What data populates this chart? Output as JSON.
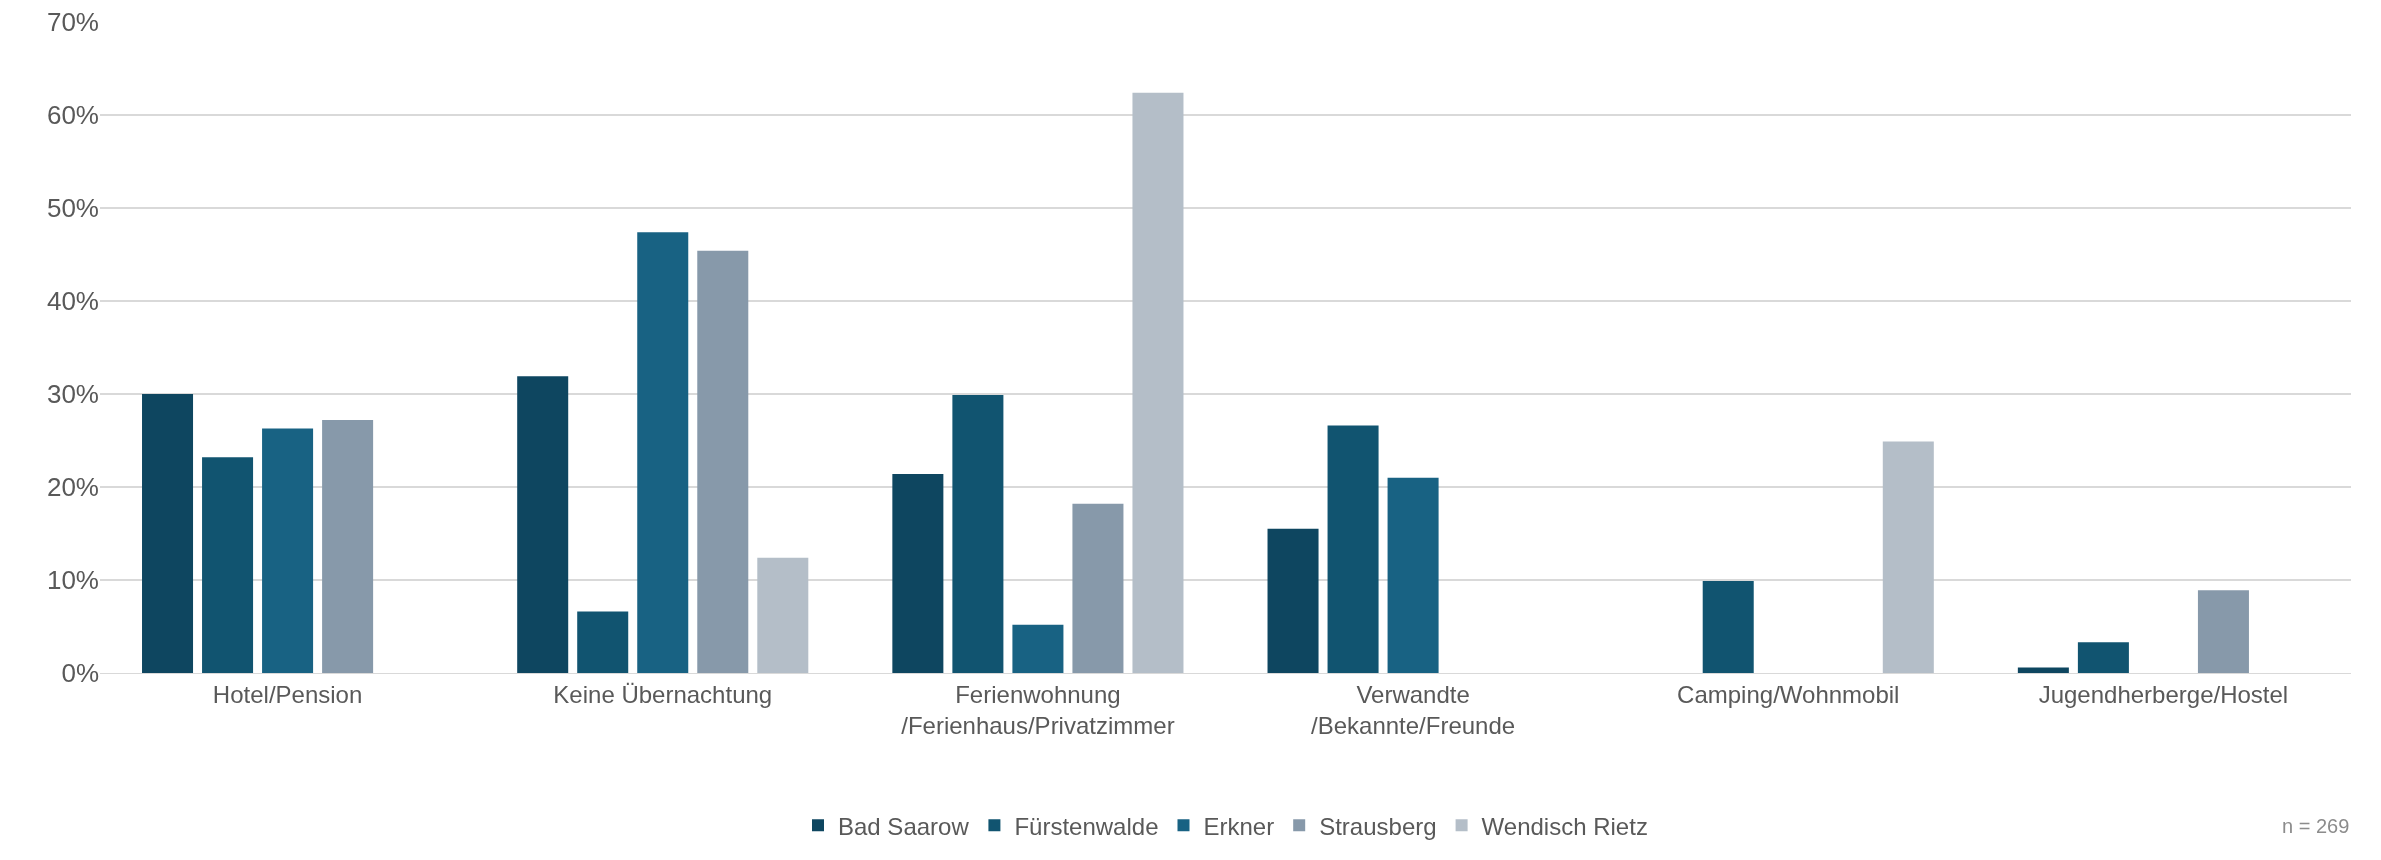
{
  "chart_data": {
    "type": "bar",
    "categories": [
      "Hotel/Pension",
      "Keine Übernachtung",
      "Ferienwohnung\n/Ferienhaus/Privatzimmer",
      "Verwandte\n/Bekannte/Freunde",
      "Camping/Wohnmobil",
      "Jugendherberge/Hostel"
    ],
    "series": [
      {
        "name": "Bad Saarow",
        "color": "#0e4660",
        "values": [
          30.0,
          31.9,
          21.4,
          15.5,
          0,
          0.6
        ]
      },
      {
        "name": "Fürstenwalde",
        "color": "#115470",
        "values": [
          23.2,
          6.6,
          29.9,
          26.6,
          9.9,
          3.3
        ]
      },
      {
        "name": "Erkner",
        "color": "#186283",
        "values": [
          26.3,
          47.4,
          5.2,
          21.0,
          0,
          0
        ]
      },
      {
        "name": "Strausberg",
        "color": "#8799aa",
        "values": [
          27.2,
          45.4,
          18.2,
          0,
          0,
          8.9
        ]
      },
      {
        "name": "Wendisch Rietz",
        "color": "#b4bec8",
        "values": [
          0,
          12.4,
          62.4,
          0,
          24.9,
          0
        ]
      }
    ],
    "ylim": [
      0,
      70
    ],
    "yticks": [
      {
        "value": 0,
        "label": "0%"
      },
      {
        "value": 10,
        "label": "10%"
      },
      {
        "value": 20,
        "label": "20%"
      },
      {
        "value": 30,
        "label": "30%"
      },
      {
        "value": 40,
        "label": "40%"
      },
      {
        "value": 50,
        "label": "50%"
      },
      {
        "value": 60,
        "label": "60%"
      },
      {
        "value": 70,
        "label": "70%"
      }
    ],
    "grid": "y",
    "legend": "bottom",
    "annotations": [
      "n = 269"
    ]
  }
}
